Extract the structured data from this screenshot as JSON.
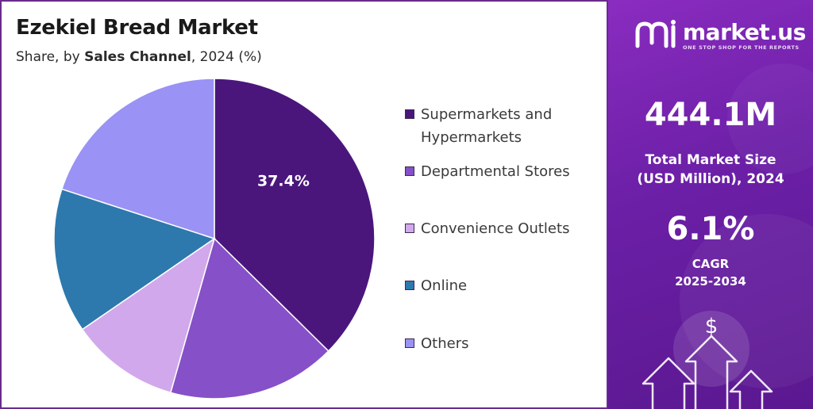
{
  "title": "Ezekiel Bread Market",
  "subtitle": {
    "prefix": "Share, by",
    "dimension": "Sales Channel",
    "suffix": ", 2024 (%)"
  },
  "chart_data": {
    "type": "pie",
    "title": "Ezekiel Bread Market",
    "subtitle": "Share, by Sales Channel, 2024 (%)",
    "unit": "%",
    "legend_position": "right",
    "slices": [
      {
        "label": "Supermarkets and Hypermarkets",
        "value": 37.4,
        "color": "#4a167c",
        "show_label": true,
        "display": "37.4%"
      },
      {
        "label": "Departmental Stores",
        "value": 17.0,
        "color": "#8650c8",
        "show_label": false
      },
      {
        "label": "Convenience Outlets",
        "value": 11.0,
        "color": "#d2a8ec",
        "show_label": false
      },
      {
        "label": "Online",
        "value": 14.6,
        "color": "#2d79ad",
        "show_label": false
      },
      {
        "label": "Others",
        "value": 20.0,
        "color": "#9a92f4",
        "show_label": false
      }
    ]
  },
  "legend": {
    "items": [
      {
        "line1": "Supermarkets and",
        "line2": "Hypermarkets",
        "color": "#4a167c"
      },
      {
        "line1": "Departmental Stores",
        "line2": "",
        "color": "#8650c8"
      },
      {
        "line1": "Convenience Outlets",
        "line2": "",
        "color": "#d2a8ec"
      },
      {
        "line1": "Online",
        "line2": "",
        "color": "#2d79ad"
      },
      {
        "line1": "Others",
        "line2": "",
        "color": "#9a92f4"
      }
    ]
  },
  "brand": {
    "name": "market.us",
    "tagline": "ONE STOP SHOP FOR THE REPORTS",
    "icon": "market-us-logo-mark"
  },
  "stats": {
    "market_size": "444.1M",
    "market_size_label_1": "Total Market Size",
    "market_size_label_2": "(USD Million), 2024",
    "cagr": "6.1%",
    "cagr_label_1": "CAGR",
    "cagr_label_2": "2025-2034"
  },
  "decor": {
    "dollar_symbol": "$",
    "icon": "growth-arrows-icon"
  }
}
